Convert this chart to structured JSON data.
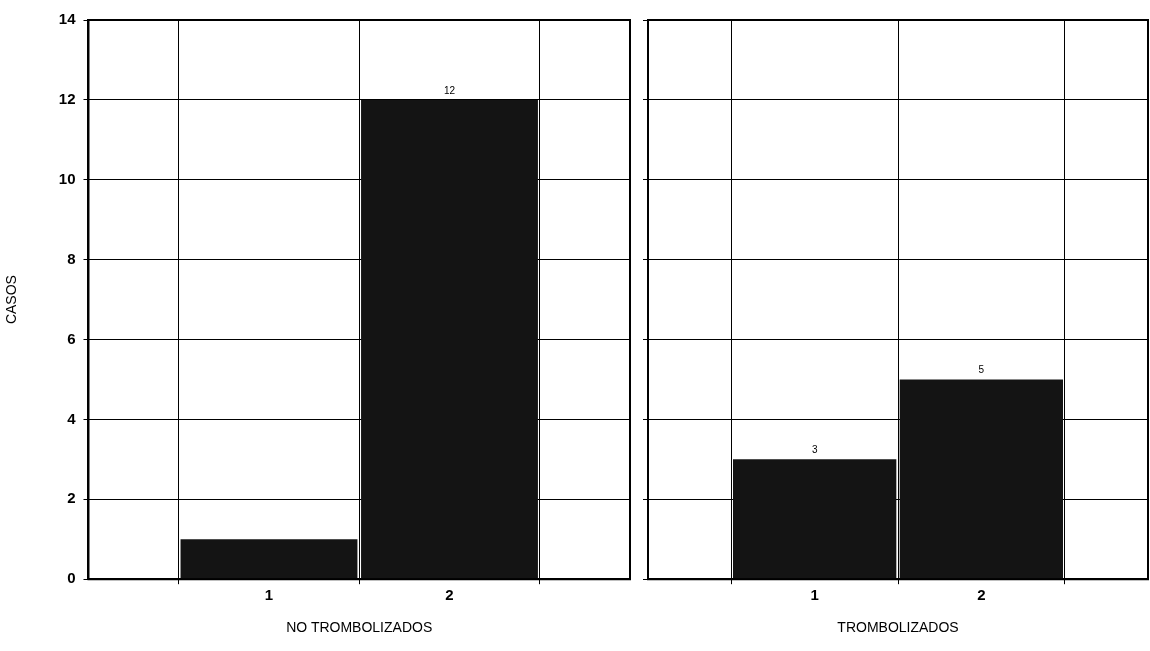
{
  "chart_data": [
    {
      "type": "bar",
      "categories": [
        "1",
        "2"
      ],
      "values": [
        1,
        12
      ],
      "value_labels": [
        null,
        "12"
      ],
      "color": "#141414",
      "xlabel": "NO TROMBOLIZADOS",
      "ylabel": "CASOS",
      "ylim": [
        0,
        14
      ],
      "yticks": [
        0,
        2,
        4,
        6,
        8,
        10,
        12,
        14
      ],
      "grid": true,
      "legend": false
    },
    {
      "type": "bar",
      "categories": [
        "1",
        "2"
      ],
      "values": [
        3,
        5
      ],
      "value_labels": [
        "3",
        "5"
      ],
      "color": "#141414",
      "xlabel": "TROMBOLIZADOS",
      "ylim": [
        0,
        14
      ],
      "yticks": [
        0,
        2,
        4,
        6,
        8,
        10,
        12,
        14
      ],
      "grid": true,
      "legend": false,
      "tick_labels": "x"
    }
  ]
}
